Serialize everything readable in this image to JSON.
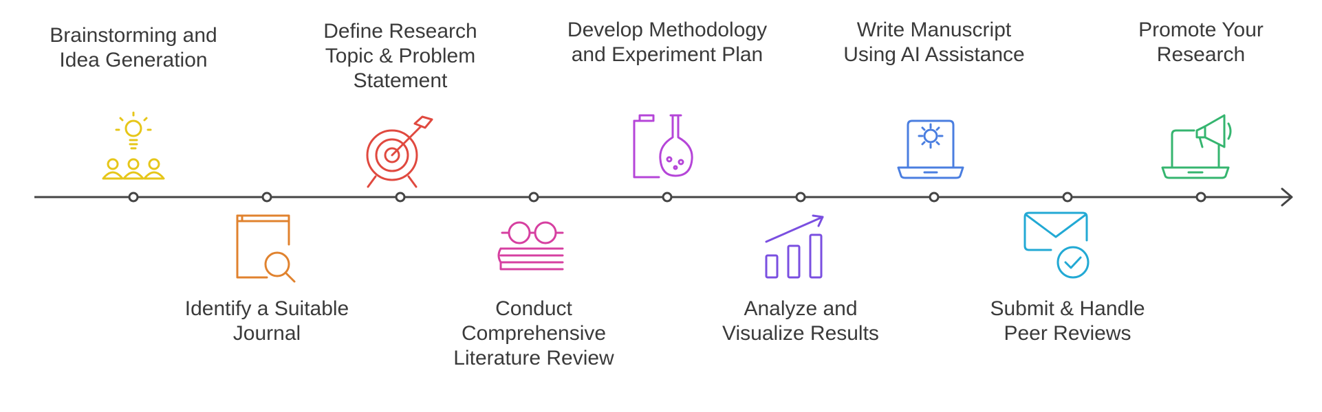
{
  "steps": [
    {
      "label": "Brainstorming and\nIdea Generation",
      "icon": "brainstorm-people-icon",
      "color": "#e6c619",
      "side": "top"
    },
    {
      "label": "Identify a Suitable\nJournal",
      "icon": "book-search-icon",
      "color": "#e0822e",
      "side": "bottom"
    },
    {
      "label": "Define Research\nTopic & Problem\nStatement",
      "icon": "target-arrow-icon",
      "color": "#e0493f",
      "side": "top"
    },
    {
      "label": "Conduct\nComprehensive\nLiterature Review",
      "icon": "glasses-books-icon",
      "color": "#d63fa0",
      "side": "bottom"
    },
    {
      "label": "Develop Methodology\nand Experiment Plan",
      "icon": "lab-flask-icon",
      "color": "#b545d8",
      "side": "top"
    },
    {
      "label": "Analyze and\nVisualize Results",
      "icon": "bar-chart-trend-icon",
      "color": "#7a4fe0",
      "side": "bottom"
    },
    {
      "label": "Write Manuscript\nUsing AI Assistance",
      "icon": "laptop-gear-icon",
      "color": "#4a7ee0",
      "side": "top"
    },
    {
      "label": "Submit & Handle\nPeer Reviews",
      "icon": "envelope-check-icon",
      "color": "#22a9d4",
      "side": "bottom"
    },
    {
      "label": "Promote Your\nResearch",
      "icon": "laptop-megaphone-icon",
      "color": "#35b56f",
      "side": "top"
    }
  ]
}
